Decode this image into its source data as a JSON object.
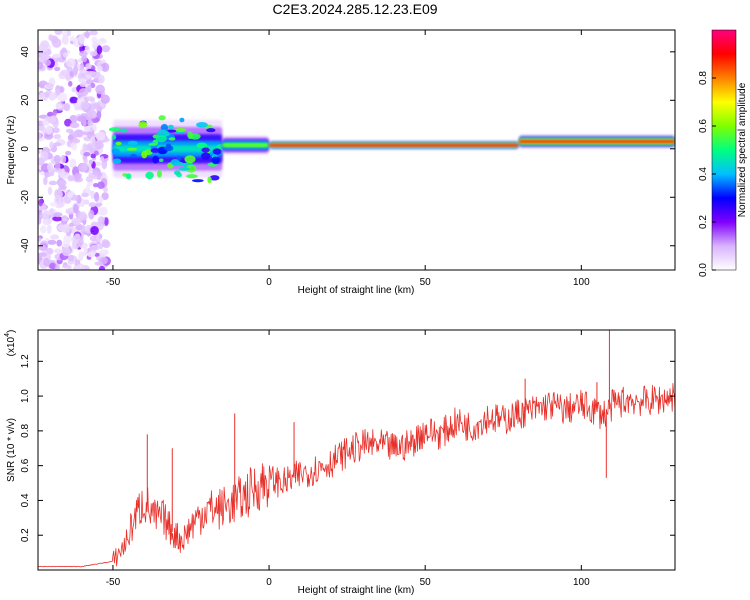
{
  "figure": {
    "title": "C2E3.2024.285.12.23.E09"
  },
  "chart_data": [
    {
      "type": "heatmap",
      "xlabel": "Height of straight line (km)",
      "ylabel": "Frequency (Hz)",
      "xlim": [
        -74,
        130
      ],
      "ylim": [
        -50,
        49
      ],
      "xticks": [
        -50,
        0,
        50,
        100
      ],
      "yticks": [
        -40,
        -20,
        0,
        20,
        40
      ],
      "xtick_labels": [
        "-50",
        "0",
        "50",
        "100"
      ],
      "ytick_labels": [
        "-40",
        "-20",
        "0",
        "20",
        "40"
      ],
      "grid": false,
      "colorbar": {
        "label": "Normalized spectral amplitude",
        "range": [
          0,
          1
        ],
        "ticks": [
          0.0,
          0.2,
          0.4,
          0.6,
          0.8
        ],
        "tick_labels": [
          "0.0",
          "0.2",
          "0.4",
          "0.6",
          "0.8"
        ],
        "colors": [
          "#ffffff",
          "#d9b3ff",
          "#8000ff",
          "#0000ff",
          "#00c0ff",
          "#00ff80",
          "#80ff00",
          "#ffff00",
          "#ff8000",
          "#ff0000",
          "#ff0080"
        ]
      },
      "noise_region": {
        "x_range": [
          -74,
          -52
        ],
        "y_range": [
          -50,
          49
        ],
        "amplitude": 0.15
      },
      "features": [
        {
          "x0": -50,
          "x1": -15,
          "f_center": 0,
          "f_spread": 12,
          "amplitude": 0.45
        },
        {
          "x0": -15,
          "x1": 0,
          "f_center": 1.5,
          "f_spread": 4,
          "amplitude": 0.6
        },
        {
          "x0": 0,
          "x1": 80,
          "f_center": 1.5,
          "f_spread": 2,
          "amplitude": 0.95
        },
        {
          "x0": 80,
          "x1": 130,
          "f_center": 3,
          "f_spread": 3,
          "amplitude": 0.9
        }
      ]
    },
    {
      "type": "line",
      "xlabel": "Height of straight line (km)",
      "ylabel": "SNR (10 * v/v)",
      "y_multiplier": "(x10",
      "y_multiplier_exp": "4",
      "y_multiplier_close": ")",
      "xlim": [
        -74,
        130
      ],
      "ylim": [
        0,
        1.38
      ],
      "xticks": [
        -50,
        0,
        50,
        100
      ],
      "yticks": [
        0.2,
        0.4,
        0.6,
        0.8,
        1.0,
        1.2
      ],
      "xtick_labels": [
        "-50",
        "0",
        "50",
        "100"
      ],
      "ytick_labels": [
        "0.2",
        "0.4",
        "0.6",
        "0.8",
        "1.0",
        "1.2"
      ],
      "grid": false,
      "series": [
        {
          "color": "#e8302a",
          "x": [
            -74,
            -60,
            -50,
            -46,
            -43,
            -40,
            -37,
            -34,
            -31,
            -28,
            -24,
            -20,
            -16,
            -12,
            -8,
            -4,
            0,
            5,
            10,
            15,
            20,
            25,
            30,
            35,
            40,
            45,
            50,
            55,
            60,
            65,
            70,
            75,
            80,
            85,
            90,
            95,
            100,
            104,
            106,
            108,
            110,
            112,
            115,
            120,
            125,
            130
          ],
          "y": [
            0.02,
            0.02,
            0.05,
            0.15,
            0.3,
            0.4,
            0.3,
            0.3,
            0.22,
            0.17,
            0.28,
            0.35,
            0.35,
            0.38,
            0.42,
            0.48,
            0.52,
            0.5,
            0.55,
            0.58,
            0.62,
            0.68,
            0.72,
            0.72,
            0.7,
            0.72,
            0.8,
            0.78,
            0.85,
            0.82,
            0.88,
            0.86,
            0.9,
            0.92,
            0.95,
            0.92,
            0.95,
            0.92,
            0.9,
            0.9,
            0.95,
            0.96,
            0.98,
            0.97,
            0.98,
            1.0
          ]
        }
      ],
      "spikes": [
        {
          "x": -39,
          "y": 0.78
        },
        {
          "x": -31,
          "y": 0.7
        },
        {
          "x": -11,
          "y": 0.9
        },
        {
          "x": 8,
          "y": 0.85
        },
        {
          "x": 82,
          "y": 1.1
        },
        {
          "x": 105,
          "y": 1.08
        },
        {
          "x": 109,
          "y": 1.38
        },
        {
          "x": 108,
          "y": 0.53
        }
      ]
    }
  ]
}
